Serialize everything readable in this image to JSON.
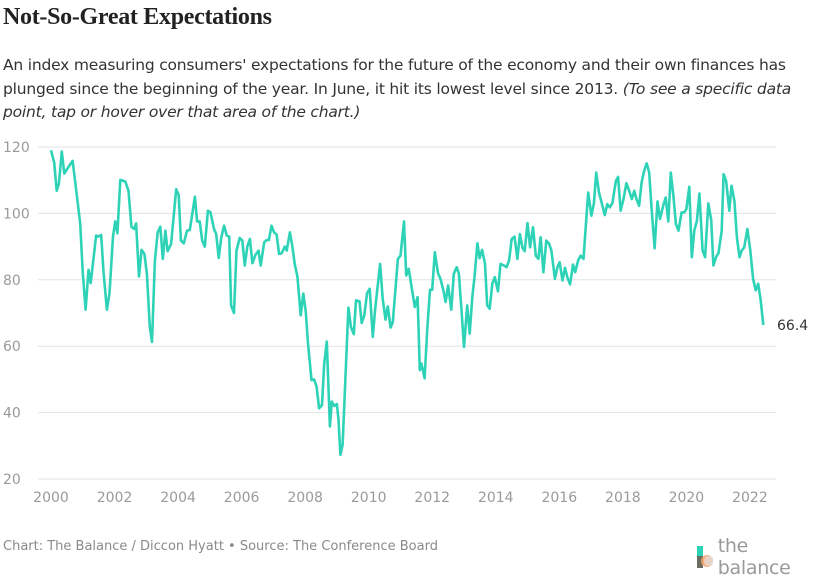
{
  "header": {
    "title": "Not-So-Great Expectations",
    "subtitle_main": "An index measuring consumers' expectations for the future of the economy and their own finances has plunged since the beginning of the year. In June, it hit its lowest level since 2013.",
    "subtitle_note": "(To see a specific data point, tap or hover over that area of the chart.)"
  },
  "footer": {
    "credit": "Chart: The Balance / Diccon Hyatt • Source: The Conference Board",
    "logo_text": "the balance"
  },
  "chart_data": {
    "type": "line",
    "title": "Not-So-Great Expectations",
    "xlabel": "",
    "ylabel": "",
    "xlim": [
      2000,
      2022.5
    ],
    "ylim": [
      20,
      120
    ],
    "x_ticks": [
      "2000",
      "2002",
      "2004",
      "2006",
      "2008",
      "2010",
      "2012",
      "2014",
      "2016",
      "2018",
      "2020",
      "2022"
    ],
    "y_ticks": [
      "20",
      "40",
      "60",
      "80",
      "100",
      "120"
    ],
    "grid": "horizontal",
    "line_color": "#2ed3b7",
    "end_label": "66.4",
    "series": [
      {
        "points": [
          [
            2000.0,
            119
          ],
          [
            2000.1,
            115.3
          ],
          [
            2000.18,
            106.8
          ],
          [
            2000.25,
            109
          ],
          [
            2000.34,
            118.6
          ],
          [
            2000.42,
            112
          ],
          [
            2000.55,
            114
          ],
          [
            2000.68,
            115.8
          ],
          [
            2000.83,
            104
          ],
          [
            2000.92,
            97
          ],
          [
            2001.0,
            82
          ],
          [
            2001.09,
            71
          ],
          [
            2001.18,
            83
          ],
          [
            2001.25,
            79
          ],
          [
            2001.42,
            93.3
          ],
          [
            2001.49,
            93
          ],
          [
            2001.58,
            93.5
          ],
          [
            2001.65,
            82.8
          ],
          [
            2001.76,
            71
          ],
          [
            2001.84,
            76
          ],
          [
            2001.95,
            93
          ],
          [
            2002.02,
            97.6
          ],
          [
            2002.09,
            94
          ],
          [
            2002.18,
            110.1
          ],
          [
            2002.34,
            109.6
          ],
          [
            2002.44,
            106.8
          ],
          [
            2002.53,
            96
          ],
          [
            2002.62,
            95.3
          ],
          [
            2002.68,
            97
          ],
          [
            2002.77,
            81
          ],
          [
            2002.85,
            89
          ],
          [
            2002.94,
            87.8
          ],
          [
            2003.02,
            81.8
          ],
          [
            2003.11,
            65.8
          ],
          [
            2003.18,
            61.3
          ],
          [
            2003.27,
            85.8
          ],
          [
            2003.36,
            94.3
          ],
          [
            2003.44,
            96
          ],
          [
            2003.52,
            86.3
          ],
          [
            2003.6,
            94.8
          ],
          [
            2003.67,
            88.6
          ],
          [
            2003.78,
            90.8
          ],
          [
            2003.94,
            107.3
          ],
          [
            2004.02,
            105.5
          ],
          [
            2004.09,
            91.8
          ],
          [
            2004.18,
            91
          ],
          [
            2004.28,
            94.8
          ],
          [
            2004.37,
            95
          ],
          [
            2004.53,
            105
          ],
          [
            2004.6,
            97.6
          ],
          [
            2004.68,
            97.6
          ],
          [
            2004.76,
            91.8
          ],
          [
            2004.84,
            90
          ],
          [
            2004.94,
            100.8
          ],
          [
            2005.02,
            100.3
          ],
          [
            2005.13,
            95.3
          ],
          [
            2005.2,
            93.8
          ],
          [
            2005.28,
            86.6
          ],
          [
            2005.36,
            92.8
          ],
          [
            2005.45,
            96.3
          ],
          [
            2005.53,
            93.3
          ],
          [
            2005.61,
            93
          ],
          [
            2005.67,
            72.3
          ],
          [
            2005.76,
            70
          ],
          [
            2005.84,
            88.8
          ],
          [
            2005.94,
            92.6
          ],
          [
            2006.02,
            91.8
          ],
          [
            2006.1,
            84.3
          ],
          [
            2006.18,
            90
          ],
          [
            2006.26,
            92.3
          ],
          [
            2006.34,
            85
          ],
          [
            2006.44,
            87.6
          ],
          [
            2006.53,
            88.8
          ],
          [
            2006.6,
            84.3
          ],
          [
            2006.71,
            91.3
          ],
          [
            2006.79,
            92
          ],
          [
            2006.86,
            92
          ],
          [
            2006.94,
            96.3
          ],
          [
            2007.02,
            94.3
          ],
          [
            2007.1,
            93.6
          ],
          [
            2007.18,
            87.8
          ],
          [
            2007.26,
            88
          ],
          [
            2007.36,
            90
          ],
          [
            2007.42,
            88.8
          ],
          [
            2007.52,
            94.3
          ],
          [
            2007.6,
            89.8
          ],
          [
            2007.67,
            84.8
          ],
          [
            2007.76,
            80.8
          ],
          [
            2007.86,
            69.3
          ],
          [
            2007.94,
            75.8
          ],
          [
            2008.02,
            70.3
          ],
          [
            2008.09,
            60.8
          ],
          [
            2008.2,
            49.8
          ],
          [
            2008.28,
            50
          ],
          [
            2008.36,
            47.8
          ],
          [
            2008.44,
            41.3
          ],
          [
            2008.53,
            42.3
          ],
          [
            2008.6,
            54.8
          ],
          [
            2008.68,
            61.4
          ],
          [
            2008.78,
            35.8
          ],
          [
            2008.84,
            43.3
          ],
          [
            2008.92,
            42
          ],
          [
            2009.0,
            42.6
          ],
          [
            2009.05,
            37.8
          ],
          [
            2009.11,
            27.3
          ],
          [
            2009.18,
            30.3
          ],
          [
            2009.26,
            48.8
          ],
          [
            2009.36,
            71.6
          ],
          [
            2009.44,
            65.8
          ],
          [
            2009.53,
            63.6
          ],
          [
            2009.6,
            73.8
          ],
          [
            2009.71,
            73.5
          ],
          [
            2009.78,
            67
          ],
          [
            2009.86,
            69.3
          ],
          [
            2009.95,
            76
          ],
          [
            2010.03,
            77.3
          ],
          [
            2010.13,
            62.8
          ],
          [
            2010.2,
            71
          ],
          [
            2010.36,
            84.8
          ],
          [
            2010.44,
            74.3
          ],
          [
            2010.53,
            68
          ],
          [
            2010.6,
            72
          ],
          [
            2010.69,
            65.6
          ],
          [
            2010.76,
            67.3
          ],
          [
            2010.92,
            86.3
          ],
          [
            2011.0,
            87.3
          ],
          [
            2011.11,
            97.6
          ],
          [
            2011.18,
            81.3
          ],
          [
            2011.26,
            83.3
          ],
          [
            2011.45,
            71.8
          ],
          [
            2011.54,
            74.8
          ],
          [
            2011.61,
            52.8
          ],
          [
            2011.66,
            54.8
          ],
          [
            2011.76,
            50.3
          ],
          [
            2011.84,
            64.8
          ],
          [
            2011.93,
            77
          ],
          [
            2012.0,
            77
          ],
          [
            2012.08,
            88.3
          ],
          [
            2012.18,
            82
          ],
          [
            2012.26,
            80.3
          ],
          [
            2012.35,
            76.8
          ],
          [
            2012.42,
            73.3
          ],
          [
            2012.5,
            78.3
          ],
          [
            2012.6,
            71
          ],
          [
            2012.68,
            81.8
          ],
          [
            2012.77,
            83.8
          ],
          [
            2012.84,
            81.8
          ],
          [
            2012.92,
            70.8
          ],
          [
            2013.0,
            59.8
          ],
          [
            2013.1,
            72.3
          ],
          [
            2013.18,
            63.8
          ],
          [
            2013.26,
            74.8
          ],
          [
            2013.33,
            80.8
          ],
          [
            2013.42,
            91
          ],
          [
            2013.49,
            86.5
          ],
          [
            2013.57,
            89
          ],
          [
            2013.66,
            84.8
          ],
          [
            2013.73,
            72.3
          ],
          [
            2013.81,
            71.3
          ],
          [
            2013.89,
            78.8
          ],
          [
            2013.97,
            80.8
          ],
          [
            2014.07,
            76.5
          ],
          [
            2014.15,
            84.8
          ],
          [
            2014.26,
            84.3
          ],
          [
            2014.34,
            83.8
          ],
          [
            2014.42,
            85.8
          ],
          [
            2014.5,
            92.3
          ],
          [
            2014.59,
            93
          ],
          [
            2014.68,
            86.3
          ],
          [
            2014.76,
            93.8
          ],
          [
            2014.84,
            89.6
          ],
          [
            2014.91,
            88.6
          ],
          [
            2015.0,
            97.1
          ],
          [
            2015.08,
            89.8
          ],
          [
            2015.17,
            95.8
          ],
          [
            2015.26,
            87.3
          ],
          [
            2015.34,
            86.3
          ],
          [
            2015.41,
            92.8
          ],
          [
            2015.5,
            82.3
          ],
          [
            2015.59,
            91.8
          ],
          [
            2015.68,
            90.8
          ],
          [
            2015.75,
            88.8
          ],
          [
            2015.86,
            80.3
          ],
          [
            2015.94,
            83.8
          ],
          [
            2016.01,
            85.3
          ],
          [
            2016.1,
            79.8
          ],
          [
            2016.18,
            83.6
          ],
          [
            2016.25,
            80.8
          ],
          [
            2016.34,
            78.6
          ],
          [
            2016.43,
            84.6
          ],
          [
            2016.5,
            82.3
          ],
          [
            2016.59,
            85.8
          ],
          [
            2016.67,
            87.3
          ],
          [
            2016.76,
            86.3
          ],
          [
            2016.83,
            95.8
          ],
          [
            2016.91,
            106.3
          ],
          [
            2017.01,
            99.3
          ],
          [
            2017.09,
            103
          ],
          [
            2017.16,
            112.3
          ],
          [
            2017.25,
            106.3
          ],
          [
            2017.33,
            103.3
          ],
          [
            2017.43,
            99.5
          ],
          [
            2017.51,
            102.8
          ],
          [
            2017.59,
            101.8
          ],
          [
            2017.67,
            103.1
          ],
          [
            2017.78,
            109.8
          ],
          [
            2017.85,
            111
          ],
          [
            2017.93,
            100.8
          ],
          [
            2018.02,
            104.3
          ],
          [
            2018.11,
            109.1
          ],
          [
            2018.2,
            106.8
          ],
          [
            2018.28,
            104.3
          ],
          [
            2018.36,
            106.8
          ],
          [
            2018.43,
            104.3
          ],
          [
            2018.51,
            102.3
          ],
          [
            2018.59,
            109.3
          ],
          [
            2018.67,
            112.8
          ],
          [
            2018.75,
            115.1
          ],
          [
            2018.83,
            112.3
          ],
          [
            2018.9,
            101.8
          ],
          [
            2019.0,
            89.5
          ],
          [
            2019.09,
            103.6
          ],
          [
            2019.17,
            98.3
          ],
          [
            2019.27,
            102.3
          ],
          [
            2019.35,
            104.8
          ],
          [
            2019.43,
            97.6
          ],
          [
            2019.51,
            112.3
          ],
          [
            2019.59,
            105.3
          ],
          [
            2019.67,
            96.8
          ],
          [
            2019.75,
            94.8
          ],
          [
            2019.85,
            100.3
          ],
          [
            2019.93,
            100.3
          ],
          [
            2020.0,
            101.3
          ],
          [
            2020.09,
            108
          ],
          [
            2020.17,
            86.8
          ],
          [
            2020.25,
            94.8
          ],
          [
            2020.33,
            97.8
          ],
          [
            2020.41,
            106
          ],
          [
            2020.51,
            88.8
          ],
          [
            2020.59,
            86.8
          ],
          [
            2020.69,
            103
          ],
          [
            2020.78,
            98
          ],
          [
            2020.85,
            84.3
          ],
          [
            2020.94,
            87
          ],
          [
            2021.01,
            88
          ],
          [
            2021.11,
            94.8
          ],
          [
            2021.17,
            111.8
          ],
          [
            2021.25,
            109.8
          ],
          [
            2021.35,
            100.8
          ],
          [
            2021.42,
            108.3
          ],
          [
            2021.51,
            103.8
          ],
          [
            2021.59,
            92.8
          ],
          [
            2021.67,
            86.8
          ],
          [
            2021.74,
            88.8
          ],
          [
            2021.82,
            89.8
          ],
          [
            2021.92,
            95.3
          ],
          [
            2022.01,
            88.8
          ],
          [
            2022.1,
            80.3
          ],
          [
            2022.18,
            76.8
          ],
          [
            2022.26,
            78.8
          ],
          [
            2022.34,
            73.8
          ],
          [
            2022.42,
            66.4
          ]
        ]
      }
    ]
  }
}
